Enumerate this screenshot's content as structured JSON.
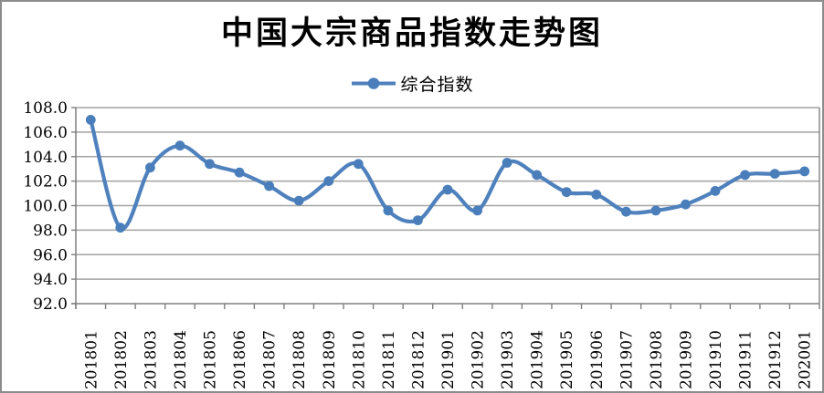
{
  "chart_data": {
    "type": "line",
    "title": "中国大宗商品指数走势图",
    "categories": [
      "201801",
      "201802",
      "201803",
      "201804",
      "201805",
      "201806",
      "201807",
      "201808",
      "201809",
      "201810",
      "201811",
      "201812",
      "201901",
      "201902",
      "201903",
      "201904",
      "201905",
      "201906",
      "201907",
      "201908",
      "201909",
      "201910",
      "201911",
      "201912",
      "202001"
    ],
    "series": [
      {
        "name": "综合指数",
        "values": [
          107.0,
          98.2,
          103.1,
          104.9,
          103.4,
          102.7,
          101.6,
          100.4,
          102.0,
          103.4,
          99.6,
          98.8,
          101.3,
          99.6,
          103.5,
          102.5,
          101.1,
          100.9,
          99.5,
          99.6,
          100.1,
          101.2,
          102.5,
          102.6,
          102.8
        ],
        "color": "#4F81BD",
        "marker_color": "#4A7EBB",
        "marker": "circle",
        "smooth": true
      }
    ],
    "xlabel": "",
    "ylabel": "",
    "ylim": [
      92.0,
      108.0
    ],
    "ytick_step": 2.0,
    "ytick_decimals": 1,
    "grid": true,
    "legend_position": "top-center",
    "x_tick_label_rotation": -90
  },
  "colors": {
    "gridline": "#A3A3A3",
    "axis": "#7F7F7F",
    "frame_border": "#8C8C8C",
    "background": "#FFFFFF"
  }
}
